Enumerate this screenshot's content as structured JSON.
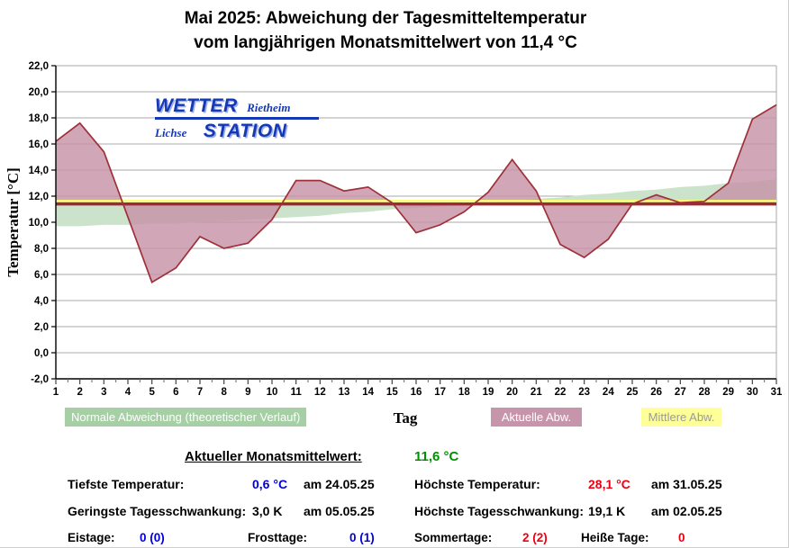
{
  "title": {
    "line1": "Mai 2025: Abweichung der Tagesmitteltemperatur",
    "line2": "vom langjährigen Monatsmittelwert von 11,4 °C"
  },
  "logo": {
    "wetter": "WETTER",
    "rietheim": "Rietheim",
    "lichse": "Lichse",
    "station": "STATION"
  },
  "chart_data": {
    "type": "area",
    "x": [
      1,
      2,
      3,
      4,
      5,
      6,
      7,
      8,
      9,
      10,
      11,
      12,
      13,
      14,
      15,
      16,
      17,
      18,
      19,
      20,
      21,
      22,
      23,
      24,
      25,
      26,
      27,
      28,
      29,
      30,
      31
    ],
    "xlabel": "Tag",
    "ylabel": "Temperatur [°C]",
    "ylim": [
      -2,
      22
    ],
    "y_tick_step": 2,
    "y_tick_labels": [
      "22,0",
      "20,0",
      "18,0",
      "16,0",
      "14,0",
      "12,0",
      "10,0",
      "8,0",
      "6,0",
      "4,0",
      "2,0",
      "0,0",
      "-2,0"
    ],
    "grid": true,
    "legend_position": "bottom",
    "reference_mean": 11.4,
    "current_mean": 11.6,
    "series": [
      {
        "name": "Aktuelle Abw.",
        "type": "area",
        "fill": "#c792a7",
        "line": "#9e3039",
        "values": [
          16.2,
          17.6,
          15.4,
          10.4,
          5.4,
          6.5,
          8.9,
          8.0,
          8.4,
          10.2,
          13.2,
          13.2,
          12.4,
          12.7,
          11.5,
          9.2,
          9.8,
          10.8,
          12.3,
          14.8,
          12.4,
          8.3,
          7.3,
          8.7,
          11.4,
          12.1,
          11.5,
          11.6,
          13.0,
          17.9,
          19.0
        ]
      },
      {
        "name": "Normale Abweichung (theoretischer Verlauf)",
        "type": "area",
        "fill": "#cbe3cb",
        "values": [
          9.7,
          9.7,
          9.8,
          9.8,
          9.9,
          9.9,
          10.0,
          10.1,
          10.2,
          10.3,
          10.4,
          10.5,
          10.7,
          10.8,
          11.0,
          11.1,
          11.2,
          11.3,
          11.5,
          11.6,
          11.8,
          11.9,
          12.1,
          12.2,
          12.4,
          12.5,
          12.7,
          12.8,
          13.0,
          13.1,
          13.3
        ]
      },
      {
        "name": "Mittlere Abw.",
        "type": "hline",
        "line": "#ffff66",
        "value": 11.6
      },
      {
        "name": "Langjähriger Monatsmittelwert",
        "type": "hline",
        "line": "#9c2a33",
        "value": 11.4
      }
    ]
  },
  "legend": {
    "normal": "Normale Abweichung (theoretischer Verlauf)",
    "aktuell": "Aktuelle Abw.",
    "mittlere": "Mittlere Abw."
  },
  "colors": {
    "chart_green": "#cbe3cb",
    "legend_green": "#a6cfa6",
    "chart_pink": "#c792a7",
    "legend_pink": "#c795ab",
    "legend_yellow": "#ffff99",
    "mean_line": "#9c2a33",
    "curve_line": "#9e3039",
    "stat_blue": "#0000dd",
    "stat_red": "#ee0011",
    "mean_green": "#009000",
    "logo_blue": "#1539b5"
  },
  "stats": {
    "mean_label": "Aktueller Monatsmittelwert:",
    "mean_value": "11,6 °C",
    "rows": [
      {
        "label": "Tiefste Temperatur:",
        "value": "0,6 °C",
        "date": "am 24.05.25"
      },
      {
        "label": "Höchste Temperatur:",
        "value": "28,1 °C",
        "date": "am 31.05.25"
      },
      {
        "label": "Geringste Tagesschwankung:",
        "value": "3,0 K",
        "date": "am 05.05.25"
      },
      {
        "label": "Höchste Tagesschwankung:",
        "value": "19,1 K",
        "date": "am 02.05.25"
      }
    ],
    "day_counts": [
      {
        "label": "Eistage:",
        "value": "0 (0)"
      },
      {
        "label": "Frosttage:",
        "value": "0 (1)"
      },
      {
        "label": "Sommertage:",
        "value": "2 (2)"
      },
      {
        "label": "Heiße Tage:",
        "value": "0"
      }
    ]
  }
}
